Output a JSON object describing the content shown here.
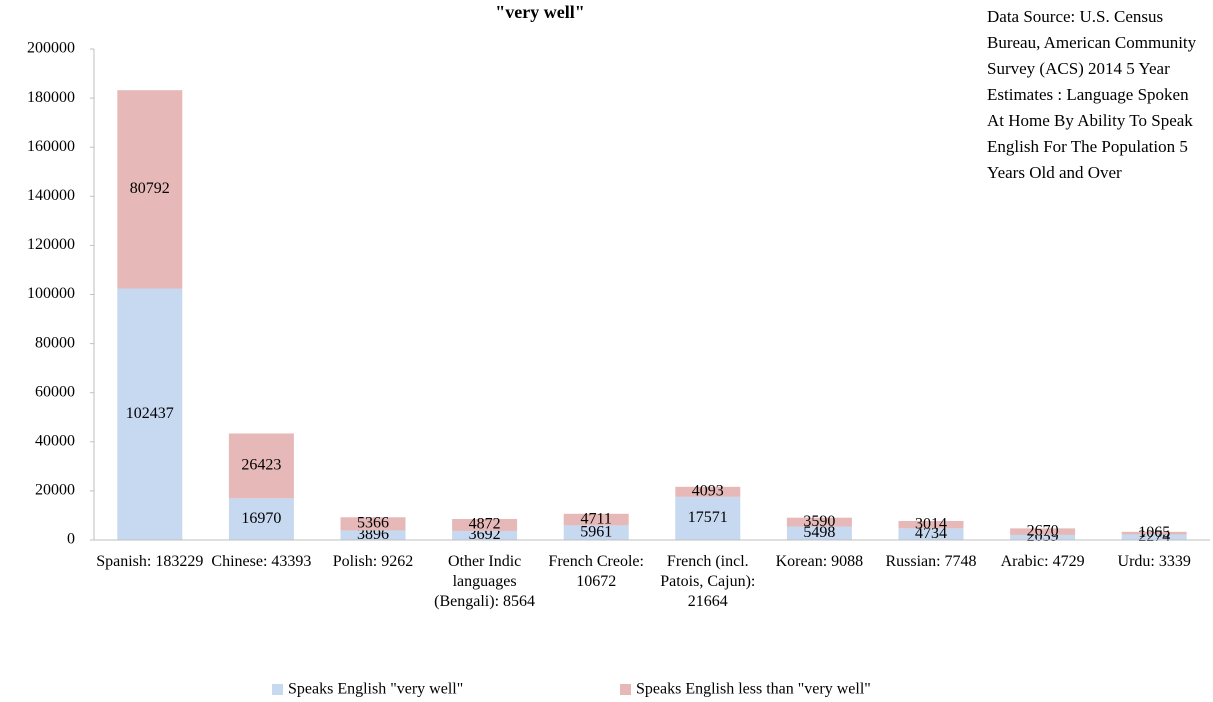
{
  "chart_data": {
    "type": "stacked_bar",
    "title": "\"very well\"",
    "annotation": "Data Source: U.S. Census Bureau, American Community Survey (ACS) 2014  5 Year Estimates : Language Spoken At Home By Ability To Speak English For The Population 5 Years Old and Over",
    "categories": [
      "Spanish: 183229",
      "Chinese: 43393",
      "Polish: 9262",
      "Other Indic languages (Bengali): 8564",
      "French Creole: 10672",
      "French (incl. Patois, Cajun): 21664",
      "Korean: 9088",
      "Russian: 7748",
      "Arabic: 4729",
      "Urdu: 3339"
    ],
    "series": [
      {
        "name": "Speaks English \"very well\"",
        "color": "#c6d9f1",
        "values": [
          102437,
          16970,
          3896,
          3692,
          5961,
          17571,
          5498,
          4734,
          2059,
          2274
        ]
      },
      {
        "name": "Speaks English less than \"very well\"",
        "color": "#e6b9b8",
        "values": [
          80792,
          26423,
          5366,
          4872,
          4711,
          4093,
          3590,
          3014,
          2670,
          1065
        ]
      }
    ],
    "ylim": [
      0,
      200000
    ],
    "yticks": [
      0,
      20000,
      40000,
      60000,
      80000,
      100000,
      120000,
      140000,
      160000,
      180000,
      200000
    ],
    "legend": "bottom"
  }
}
